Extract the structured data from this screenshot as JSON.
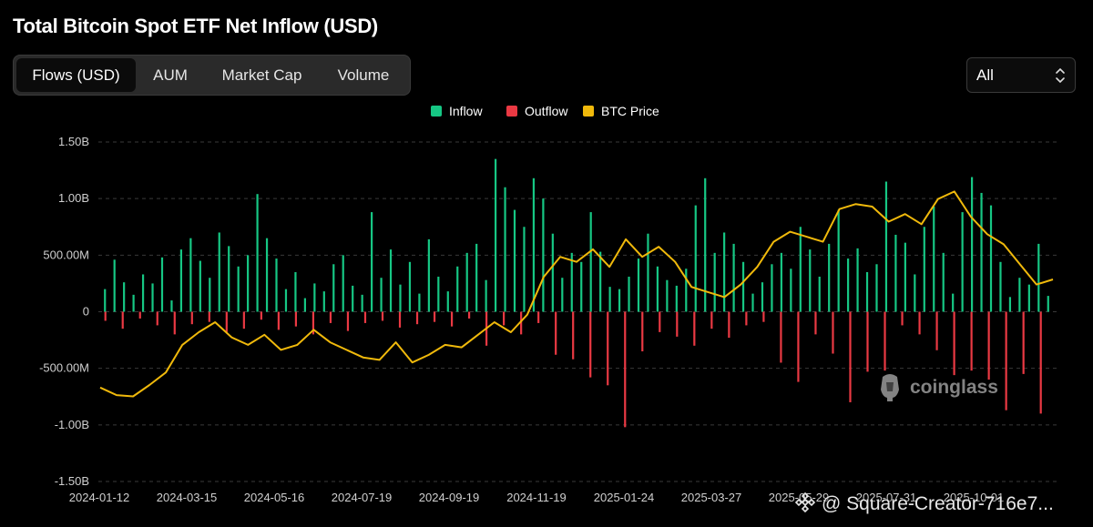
{
  "title": "Total Bitcoin Spot ETF Net Inflow (USD)",
  "tabs": [
    {
      "label": "Flows (USD)",
      "active": true
    },
    {
      "label": "AUM",
      "active": false
    },
    {
      "label": "Market Cap",
      "active": false
    },
    {
      "label": "Volume",
      "active": false
    }
  ],
  "range_select": {
    "value": "All",
    "icon": "chevron-up-down-icon"
  },
  "legend": [
    {
      "label": "Inflow",
      "color": "#16c784"
    },
    {
      "label": "Outflow",
      "color": "#ea3943"
    },
    {
      "label": "BTC Price",
      "color": "#f0b90b"
    }
  ],
  "watermark": {
    "text": "coinglass",
    "icon": "coinglass-logo-icon"
  },
  "credit": {
    "text": "@ Square-Creator-716e7...",
    "icon": "binance-diamond-icon"
  },
  "colors": {
    "inflow": "#16c784",
    "outflow": "#ea3943",
    "price": "#f0b90b",
    "grid": "#3a3a3a"
  },
  "chart_data": {
    "type": "bar",
    "title": "Total Bitcoin Spot ETF Net Inflow (USD)",
    "xlabel": "",
    "ylabel": "",
    "ylim": [
      -1500000000,
      1500000000
    ],
    "yticks": [
      {
        "value": 1500000000,
        "label": "1.50B"
      },
      {
        "value": 1000000000,
        "label": "1.00B"
      },
      {
        "value": 500000000,
        "label": "500.00M"
      },
      {
        "value": 0,
        "label": "0"
      },
      {
        "value": -500000000,
        "label": "-500.00M"
      },
      {
        "value": -1000000000,
        "label": "-1.00B"
      },
      {
        "value": -1500000000,
        "label": "-1.50B"
      }
    ],
    "x_ticks": [
      "2024-01-12",
      "2024-03-15",
      "2024-05-16",
      "2024-07-19",
      "2024-09-19",
      "2024-11-19",
      "2025-01-24",
      "2025-03-27",
      "2025-05-29",
      "2025-07-31",
      "2025-10-01"
    ],
    "grid": true,
    "legend_position": "top-center",
    "series": [
      {
        "name": "Inflow",
        "type": "bar",
        "color": "#16c784",
        "note": "daily positive net flows in USD (approximate)",
        "values": [
          200000000,
          460000000,
          260000000,
          150000000,
          330000000,
          250000000,
          480000000,
          100000000,
          550000000,
          650000000,
          450000000,
          300000000,
          700000000,
          580000000,
          400000000,
          500000000,
          1040000000,
          650000000,
          470000000,
          200000000,
          350000000,
          120000000,
          250000000,
          180000000,
          420000000,
          500000000,
          230000000,
          150000000,
          880000000,
          300000000,
          550000000,
          240000000,
          440000000,
          160000000,
          640000000,
          310000000,
          180000000,
          400000000,
          520000000,
          600000000,
          280000000,
          1350000000,
          1100000000,
          900000000,
          750000000,
          1180000000,
          1000000000,
          690000000,
          300000000,
          520000000,
          440000000,
          880000000,
          530000000,
          220000000,
          200000000,
          310000000,
          470000000,
          690000000,
          400000000,
          280000000,
          230000000,
          380000000,
          940000000,
          1180000000,
          520000000,
          700000000,
          600000000,
          440000000,
          160000000,
          260000000,
          420000000,
          520000000,
          380000000,
          750000000,
          550000000,
          310000000,
          600000000,
          900000000,
          470000000,
          560000000,
          350000000,
          420000000,
          1150000000,
          680000000,
          610000000,
          330000000,
          750000000,
          930000000,
          520000000,
          160000000,
          880000000,
          1190000000,
          1050000000,
          940000000,
          440000000,
          130000000,
          300000000,
          240000000,
          600000000,
          140000000
        ]
      },
      {
        "name": "Outflow",
        "type": "bar",
        "color": "#ea3943",
        "note": "daily negative net flows in USD (approximate)",
        "values": [
          -80000000,
          -150000000,
          -60000000,
          -120000000,
          -200000000,
          -110000000,
          -90000000,
          -180000000,
          -150000000,
          -70000000,
          -160000000,
          -130000000,
          -200000000,
          -100000000,
          -170000000,
          -100000000,
          -80000000,
          -140000000,
          -110000000,
          -90000000,
          -130000000,
          -60000000,
          -300000000,
          -120000000,
          -200000000,
          -100000000,
          -380000000,
          -420000000,
          -580000000,
          -650000000,
          -1020000000,
          -350000000,
          -180000000,
          -220000000,
          -300000000,
          -150000000,
          -230000000,
          -120000000,
          -90000000,
          -450000000,
          -620000000,
          -200000000,
          -370000000,
          -800000000,
          -530000000,
          -520000000,
          -120000000,
          -200000000,
          -340000000,
          -560000000,
          -520000000,
          -600000000,
          -870000000,
          -550000000,
          -900000000
        ]
      },
      {
        "name": "BTC Price",
        "type": "line",
        "color": "#f0b90b",
        "note": "BTC price overlay on secondary (unlabeled) axis, USD (approximate)",
        "values": [
          46000,
          43000,
          42500,
          47000,
          52000,
          63000,
          68000,
          72000,
          66000,
          63000,
          67000,
          61000,
          63000,
          69000,
          64000,
          61000,
          58000,
          57000,
          64000,
          56000,
          59000,
          63000,
          62000,
          67000,
          72000,
          68000,
          75000,
          90000,
          98000,
          96000,
          101000,
          94000,
          105000,
          98000,
          102000,
          96000,
          86000,
          84000,
          82000,
          87000,
          94000,
          104000,
          108000,
          106000,
          104000,
          117000,
          119000,
          118000,
          112000,
          115000,
          111000,
          121000,
          124000,
          114000,
          107000,
          103000,
          95000,
          87000,
          89000
        ]
      }
    ]
  }
}
